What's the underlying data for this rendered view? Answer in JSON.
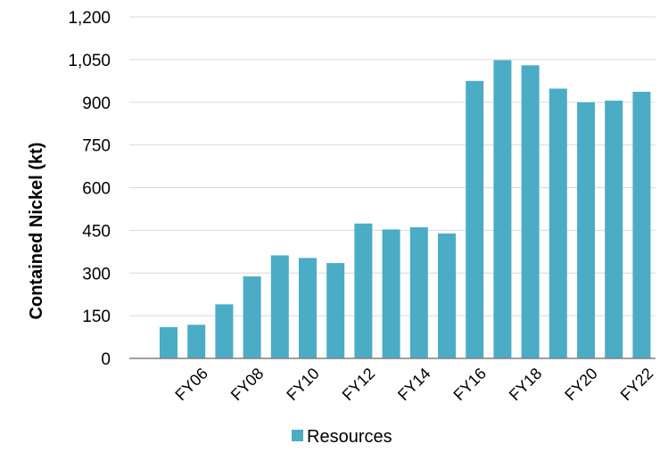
{
  "chart_data": {
    "type": "bar",
    "title": "",
    "xlabel": "",
    "ylabel": "Contained Nickel (kt)",
    "ylim": [
      0,
      1200
    ],
    "yticks": [
      "0",
      "150",
      "300",
      "450",
      "600",
      "750",
      "900",
      "1,050",
      "1,200"
    ],
    "ytick_values": [
      0,
      150,
      300,
      450,
      600,
      750,
      900,
      1050,
      1200
    ],
    "grid": "horizontal",
    "legend_position": "bottom",
    "categories": [
      "FY05",
      "FY06",
      "FY07",
      "FY08",
      "FY09",
      "FY10",
      "FY11",
      "FY12",
      "FY13",
      "FY14",
      "FY15",
      "FY16",
      "FY17",
      "FY18",
      "FY19",
      "FY20",
      "FY21",
      "FY22"
    ],
    "shown_tick_labels": [
      "FY06",
      "FY08",
      "FY10",
      "FY12",
      "FY14",
      "FY16",
      "FY18",
      "FY20",
      "FY22"
    ],
    "series": [
      {
        "name": "Resources",
        "color": "#4bacc6",
        "values": [
          110,
          118,
          190,
          288,
          362,
          353,
          335,
          474,
          453,
          461,
          439,
          975,
          1048,
          1030,
          948,
          900,
          906,
          937
        ]
      }
    ]
  }
}
